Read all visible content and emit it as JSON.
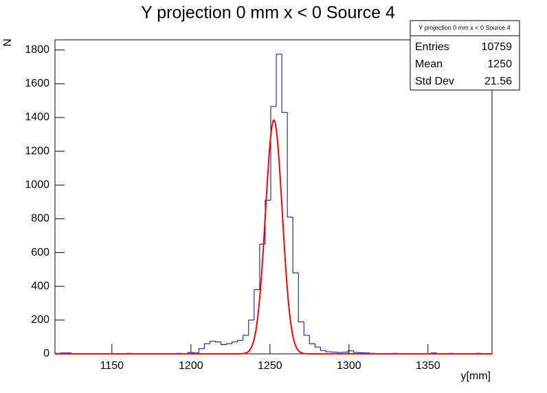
{
  "chart_data": {
    "type": "histogram",
    "title": "Y projection 0 mm x < 0 Source 4",
    "x_label": "y[mm]",
    "y_label": "N",
    "bins": [
      1114,
      1117.5,
      1121,
      1124.5,
      1128,
      1131.5,
      1135,
      1138.5,
      1142,
      1145.5,
      1149,
      1152.5,
      1156,
      1159.5,
      1163,
      1166.5,
      1170,
      1173.5,
      1177,
      1180.5,
      1184,
      1187.5,
      1191,
      1194.5,
      1198,
      1201.5,
      1205,
      1208.5,
      1212,
      1215.5,
      1219,
      1222.5,
      1226,
      1229.5,
      1233,
      1236.5,
      1240,
      1243.5,
      1247,
      1250.5,
      1254,
      1257.5,
      1261,
      1264.5,
      1268,
      1271.5,
      1275,
      1278.5,
      1282,
      1285.5,
      1289,
      1292.5,
      1296,
      1299.5,
      1303,
      1306.5,
      1310,
      1313.5,
      1317,
      1320.5,
      1324,
      1327.5,
      1331,
      1334.5,
      1338,
      1341.5,
      1345,
      1348.5,
      1352,
      1355.5,
      1359,
      1362.5,
      1366,
      1369.5,
      1373,
      1376.5,
      1380,
      1383.5,
      1387,
      1390.5
    ],
    "values": [
      3,
      5,
      5,
      2,
      0,
      0,
      0,
      2,
      0,
      0,
      0,
      0,
      0,
      3,
      0,
      0,
      0,
      2,
      0,
      0,
      0,
      0,
      3,
      0,
      8,
      5,
      30,
      60,
      75,
      70,
      55,
      60,
      70,
      80,
      110,
      200,
      380,
      650,
      910,
      1465,
      1775,
      1430,
      810,
      480,
      190,
      110,
      60,
      40,
      20,
      12,
      10,
      8,
      10,
      18,
      8,
      6,
      5,
      3,
      0,
      0,
      0,
      3,
      0,
      0,
      0,
      0,
      0,
      0,
      5,
      0,
      0,
      3,
      0,
      2,
      0,
      0,
      3,
      0,
      0
    ],
    "color": "#000099",
    "fit": {
      "color": "#ff0000",
      "amplitude": 1385,
      "mean": 1252.5,
      "sigma": 5.3
    },
    "xlim": [
      1114,
      1390.5
    ],
    "ylim": [
      0,
      1860
    ],
    "xticks": [
      1150,
      1200,
      1250,
      1300,
      1350
    ],
    "yticks": [
      0,
      200,
      400,
      600,
      800,
      1000,
      1200,
      1400,
      1600,
      1800
    ],
    "stats": {
      "title": "Y projection 0 mm x < 0 Source 4",
      "rows": [
        {
          "label": "Entries",
          "value": 10759
        },
        {
          "label": "Mean",
          "value": 1250
        },
        {
          "label": "Std Dev",
          "value": 21.56
        }
      ]
    }
  }
}
